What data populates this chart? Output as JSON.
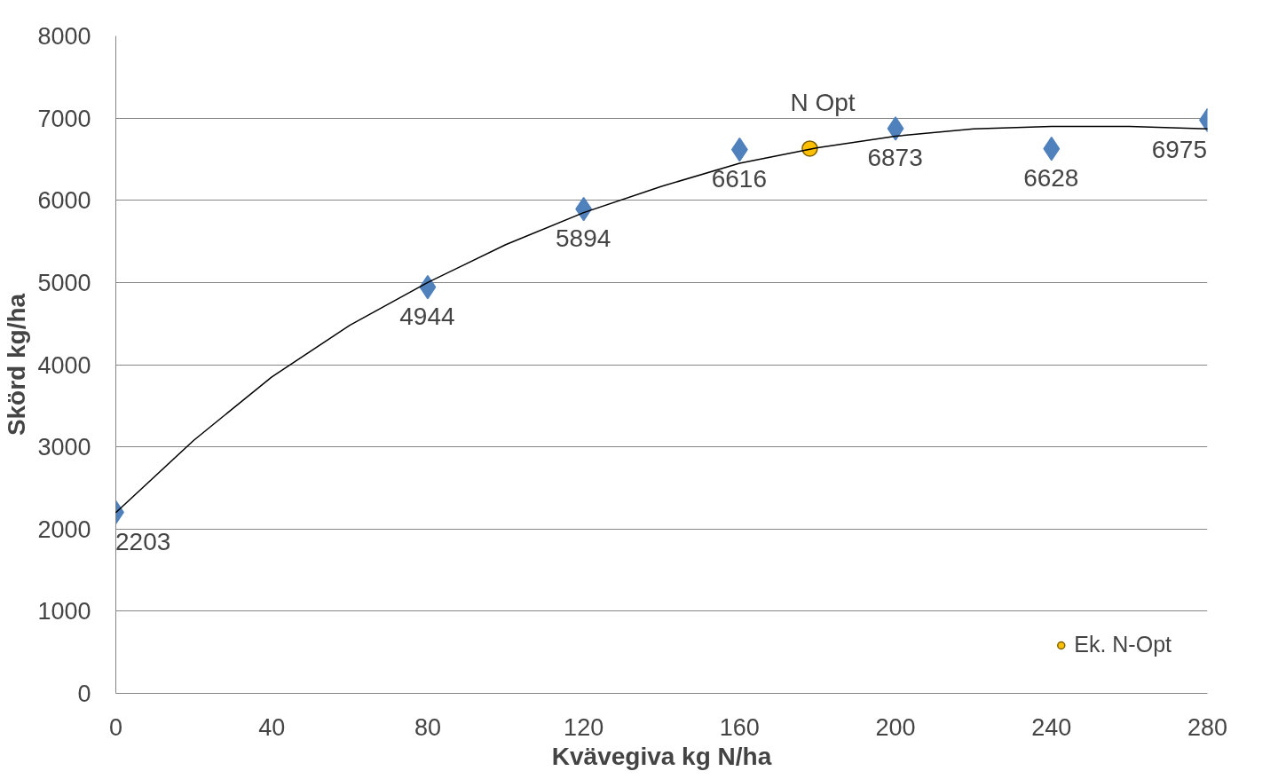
{
  "chart_data": {
    "type": "scatter",
    "xlabel": "Kvävegiva kg N/ha",
    "ylabel": "Skörd kg/ha",
    "xlim": [
      0,
      280
    ],
    "xticks": [
      0,
      40,
      80,
      120,
      160,
      200,
      240,
      280
    ],
    "ylim": [
      0,
      8000
    ],
    "yticks": [
      0,
      1000,
      2000,
      3000,
      4000,
      5000,
      6000,
      7000,
      8000
    ],
    "grid": "y",
    "legend": "bottom right",
    "series": [
      {
        "type": "line",
        "color": "#000000",
        "marker": "none",
        "x": [
          0,
          20,
          40,
          60,
          80,
          100,
          120,
          140,
          160,
          180,
          200,
          220,
          240,
          260,
          280
        ],
        "values": [
          2200,
          3080,
          3850,
          4480,
          5000,
          5460,
          5850,
          6170,
          6450,
          6640,
          6780,
          6870,
          6900,
          6900,
          6870
        ]
      },
      {
        "color": "#4f81bd",
        "marker": "diamond",
        "x": [
          0,
          80,
          120,
          160,
          200,
          240,
          280
        ],
        "values": [
          2203,
          4944,
          5894,
          6616,
          6873,
          6628,
          6975
        ],
        "value_labels": [
          "2203",
          "4944",
          "5894",
          "6616",
          "6873",
          "6628",
          "6975"
        ]
      },
      {
        "name": "Ek. N-Opt",
        "color": "#ffc000",
        "marker": "circle",
        "x": [
          178
        ],
        "values": [
          6630
        ]
      }
    ],
    "annotations": [
      {
        "text": "N Opt",
        "x": 178,
        "y": 6630
      }
    ]
  }
}
